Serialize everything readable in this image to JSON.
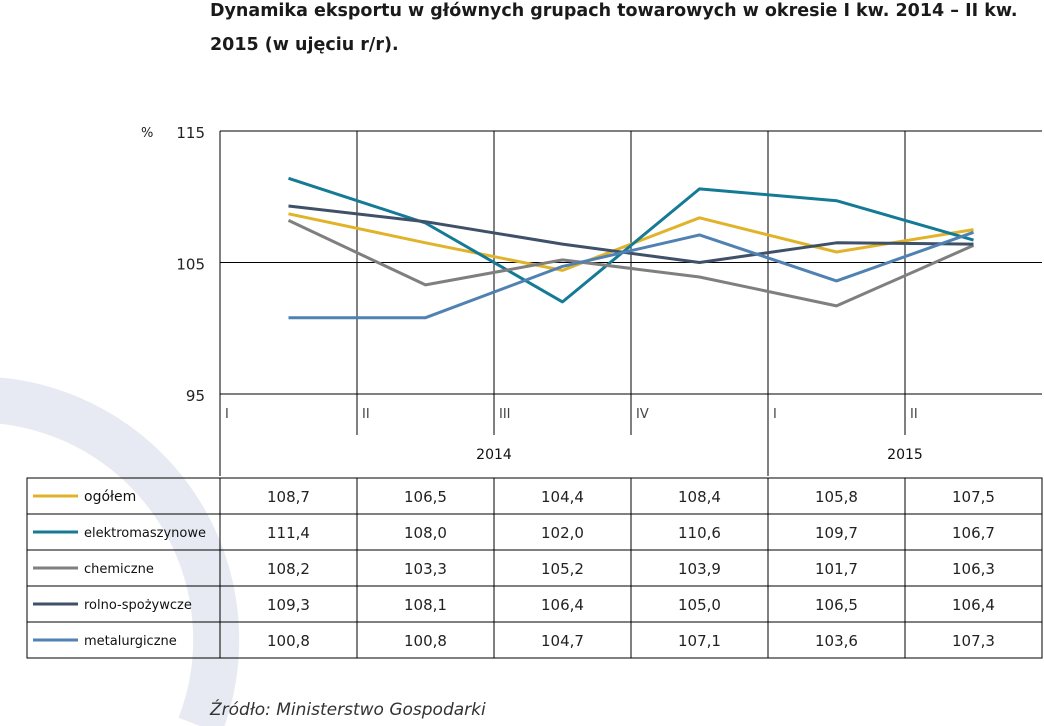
{
  "title": "Dynamika eksportu w głównych grupach towarowych w okresie I kw. 2014 – II kw. 2015 (w ujęciu r/r).",
  "source": "Źródło: Ministerstwo Gospodarki",
  "chart_data": {
    "type": "line",
    "ylabel": "%",
    "ylim": [
      95,
      115
    ],
    "yticks": [
      95,
      105,
      115
    ],
    "grid": true,
    "legend_position": "table-left",
    "categories": [
      "I",
      "II",
      "III",
      "IV",
      "I",
      "II"
    ],
    "years": [
      {
        "label": "2014",
        "span": 4
      },
      {
        "label": "2015",
        "span": 2
      }
    ],
    "series": [
      {
        "name": "ogółem",
        "color": "#e0b32a",
        "values": [
          108.7,
          106.5,
          104.4,
          108.4,
          105.8,
          107.5
        ],
        "display": [
          "108,7",
          "106,5",
          "104,4",
          "108,4",
          "105,8",
          "107,5"
        ]
      },
      {
        "name": "elektromaszynowe",
        "color": "#157a95",
        "values": [
          111.4,
          108.0,
          102.0,
          110.6,
          109.7,
          106.7
        ],
        "display": [
          "111,4",
          "108,0",
          "102,0",
          "110,6",
          "109,7",
          "106,7"
        ]
      },
      {
        "name": "chemiczne",
        "color": "#7f7f7f",
        "values": [
          108.2,
          103.3,
          105.2,
          103.9,
          101.7,
          106.3
        ],
        "display": [
          "108,2",
          "103,3",
          "105,2",
          "103,9",
          "101,7",
          "106,3"
        ]
      },
      {
        "name": "rolno-spożywcze",
        "color": "#3e5168",
        "values": [
          109.3,
          108.1,
          106.4,
          105.0,
          106.5,
          106.4
        ],
        "display": [
          "109,3",
          "108,1",
          "106,4",
          "105,0",
          "106,5",
          "106,4"
        ]
      },
      {
        "name": "metalurgiczne",
        "color": "#4f81b2",
        "values": [
          100.8,
          100.8,
          104.7,
          107.1,
          103.6,
          107.3
        ],
        "display": [
          "100,8",
          "100,8",
          "104,7",
          "107,1",
          "103,6",
          "107,3"
        ]
      }
    ]
  }
}
